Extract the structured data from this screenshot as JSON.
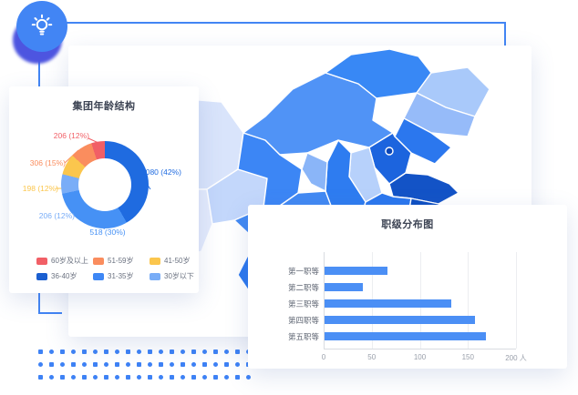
{
  "badge": {
    "icon": "lightbulb-icon"
  },
  "donut_card": {
    "title": "集团年龄结构"
  },
  "bar_card": {
    "title": "职级分布图"
  },
  "map_card": {
    "type": "china-choropleth"
  },
  "chart_data": [
    {
      "type": "pie",
      "subtype": "donut",
      "title": "集团年龄结构",
      "legend_position": "bottom",
      "segments": [
        {
          "name": "36-40岁",
          "value": 1080,
          "percent": 42,
          "label": "1080 (42%)",
          "color": "#1f6be0",
          "sweep_deg": 150
        },
        {
          "name": "31-35岁",
          "value": 518,
          "percent": 30,
          "label": "518 (30%)",
          "color": "#4691f5",
          "sweep_deg": 108
        },
        {
          "name": "30岁以下",
          "value": 206,
          "percent": 12,
          "label": "206 (12%)",
          "color": "#79adf7",
          "sweep_deg": 26
        },
        {
          "name": "41-50岁",
          "value": 198,
          "percent": 12,
          "label": "198 (12%)",
          "color": "#fbc64d",
          "sweep_deg": 28
        },
        {
          "name": "51-59岁",
          "value": 306,
          "percent": 15,
          "label": "306 (15%)",
          "color": "#fa8d5e",
          "sweep_deg": 30
        },
        {
          "name": "60岁及以上",
          "value": 206,
          "percent": 12,
          "label": "206 (12%)",
          "color": "#f15f66",
          "sweep_deg": 18
        }
      ],
      "legend": [
        {
          "label": "60岁及以上",
          "color": "#f15f66"
        },
        {
          "label": "51-59岁",
          "color": "#fa8d5e"
        },
        {
          "label": "41-50岁",
          "color": "#fbc64d"
        },
        {
          "label": "36-40岁",
          "color": "#1b5fd0"
        },
        {
          "label": "31-35岁",
          "color": "#3e87f5"
        },
        {
          "label": "30岁以下",
          "color": "#79adf7"
        }
      ]
    },
    {
      "type": "bar",
      "orientation": "horizontal",
      "title": "职级分布图",
      "categories": [
        "第一职等",
        "第二职等",
        "第三职等",
        "第四职等",
        "第五职等"
      ],
      "values": [
        65,
        40,
        132,
        156,
        168
      ],
      "bar_color": "#4b8ff5",
      "xlim": [
        0,
        200
      ],
      "xticks": [
        0,
        50,
        100,
        150,
        200
      ],
      "xtick_labels": [
        "0",
        "50",
        "100",
        "150",
        "200 人"
      ],
      "x_unit": "人",
      "grid": true
    },
    {
      "type": "heatmap",
      "subtype": "choropleth-map",
      "region": "China",
      "title": "",
      "palette": [
        "#e4ebfc",
        "#d9e4fb",
        "#c3d7fb",
        "#a9c9fa",
        "#9dc0f9",
        "#5093f6",
        "#4289f3",
        "#3c86f5",
        "#2b77ee",
        "#1c64de",
        "#1353c6",
        "#0e4fc2"
      ]
    }
  ],
  "decor": {
    "accent_color": "#4285f4",
    "dot_color": "#3e82f5"
  }
}
